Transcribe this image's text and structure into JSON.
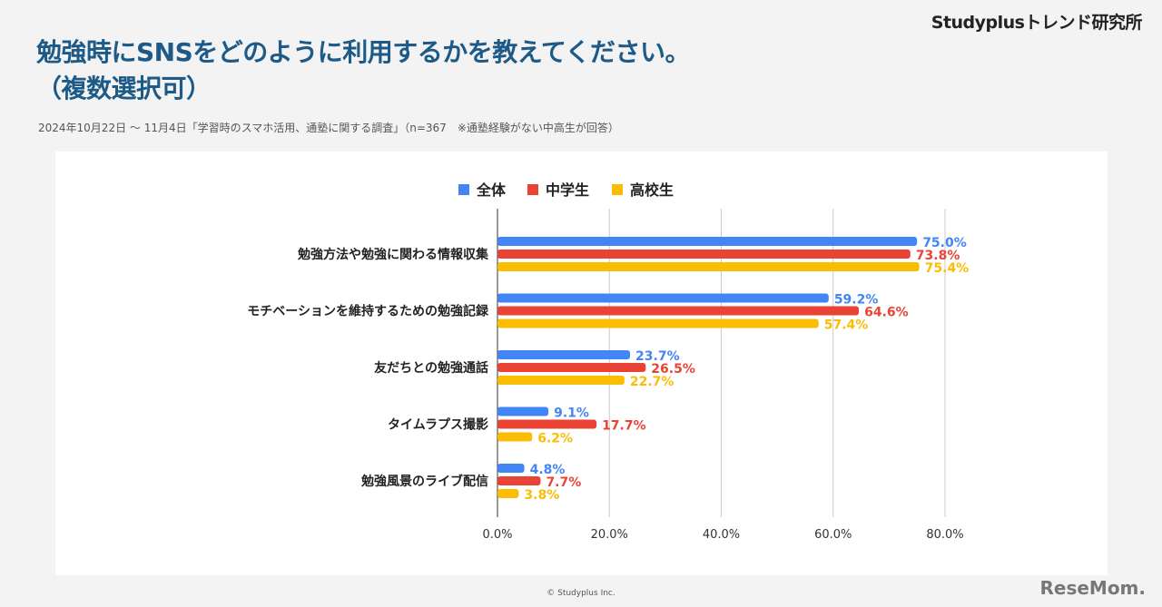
{
  "header": {
    "brand": "Studyplusトレンド研究所",
    "title_line1": "勉強時にSNSをどのように利用するかを教えてください。",
    "title_line2": "（複数選択可）",
    "subtitle": "2024年10月22日 〜 11月4日「学習時のスマホ活用、通塾に関する調査」（n=367　※通塾経験がない中高生が回答）"
  },
  "footer": {
    "copyright": "© Studyplus Inc.",
    "logo": "ReseMom"
  },
  "chart_data": {
    "type": "bar",
    "orientation": "horizontal",
    "categories": [
      "勉強方法や勉強に関わる情報収集",
      "モチベーションを維持するための勉強記録",
      "友だちとの勉強通話",
      "タイムラプス撮影",
      "勉強風景のライブ配信"
    ],
    "series": [
      {
        "name": "全体",
        "color": "#4285f4",
        "values": [
          75.0,
          59.2,
          23.7,
          9.1,
          4.8
        ]
      },
      {
        "name": "中学生",
        "color": "#ea4335",
        "values": [
          73.8,
          64.6,
          26.5,
          17.7,
          7.7
        ]
      },
      {
        "name": "高校生",
        "color": "#fbbc04",
        "values": [
          75.4,
          57.4,
          22.7,
          6.2,
          3.8
        ]
      }
    ],
    "xlim": [
      0,
      80
    ],
    "xticks": [
      "0.0%",
      "20.0%",
      "40.0%",
      "60.0%",
      "80.0%"
    ],
    "grid": true,
    "legend": "top"
  }
}
